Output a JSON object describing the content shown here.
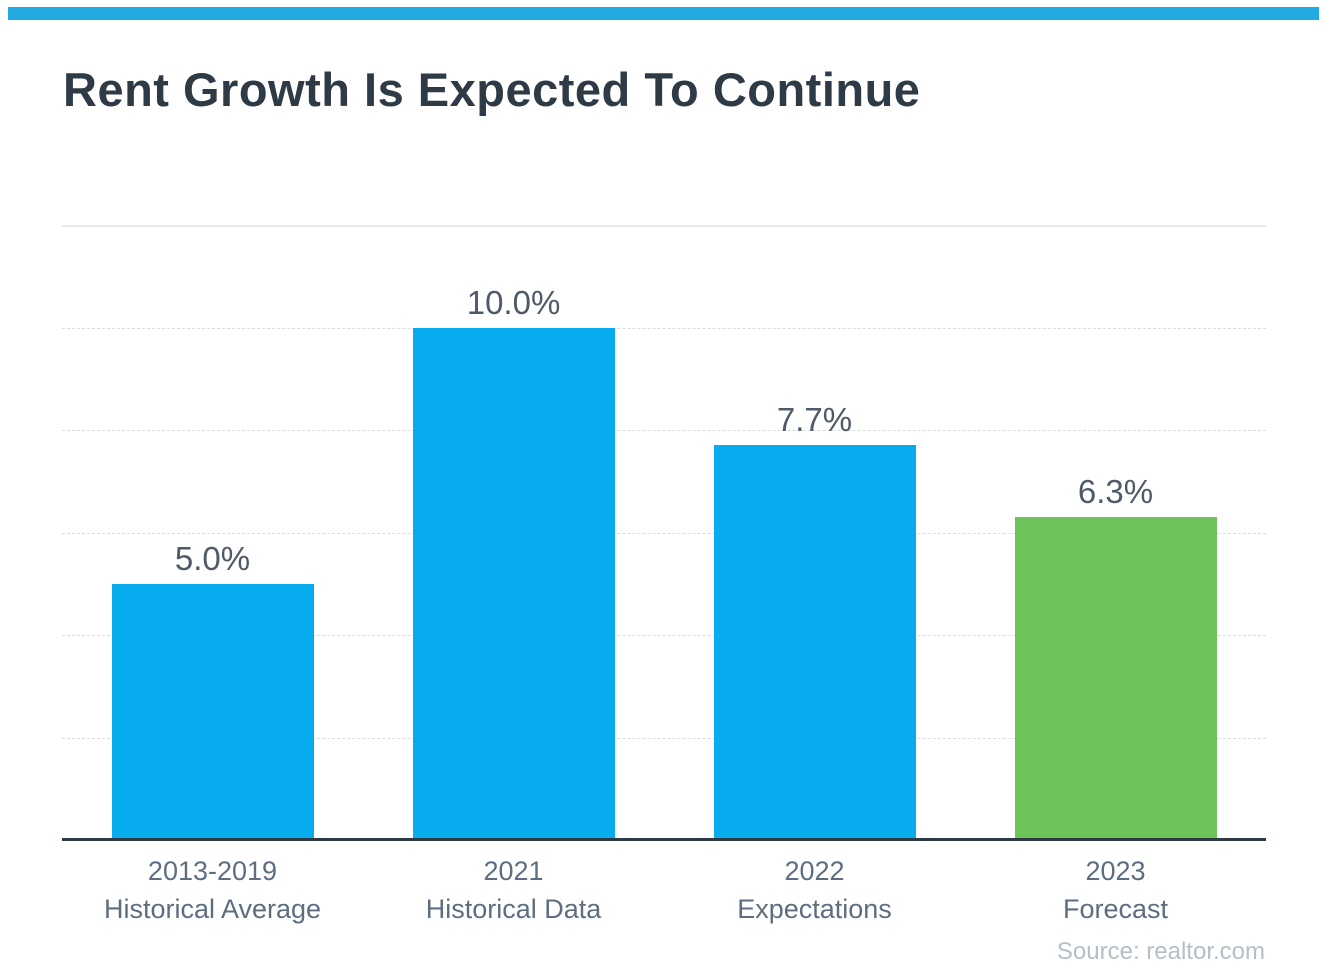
{
  "chart_data": {
    "type": "bar",
    "title": "Rent Growth Is Expected To Continue",
    "categories": [
      "2013-2019 Historical Average",
      "2021 Historical Data",
      "2022 Expectations",
      "2023 Forecast"
    ],
    "values": [
      5.0,
      10.0,
      7.7,
      6.3
    ],
    "value_labels": [
      "5.0%",
      "10.0%",
      "7.7%",
      "6.3%"
    ],
    "xlabel": "",
    "ylabel": "",
    "ylim": [
      0,
      12
    ],
    "gridline_step": 2,
    "grid": true,
    "legend": "none",
    "source_label": "Source: realtor.com",
    "bars": [
      {
        "line1": "2013-2019",
        "line2": "Historical Average",
        "value": 5.0,
        "label": "5.0%",
        "color": "#06aced"
      },
      {
        "line1": "2021",
        "line2": "Historical Data",
        "value": 10.0,
        "label": "10.0%",
        "color": "#06aced"
      },
      {
        "line1": "2022",
        "line2": "Expectations",
        "value": 7.7,
        "label": "7.7%",
        "color": "#06aced"
      },
      {
        "line1": "2023",
        "line2": "Forecast",
        "value": 6.3,
        "label": "6.3%",
        "color": "#6ec25a"
      }
    ],
    "colors": {
      "bar_blue": "#06aced",
      "bar_green": "#6ec25a",
      "accent_stripe": "#22aae2",
      "title_text": "#2e3a46",
      "value_label_text": "#4f5a68",
      "category_label_text": "#5e6e81",
      "axis_line": "#2f3943",
      "gridline": "#d9dde0",
      "source_text": "#b4bfc8"
    }
  }
}
